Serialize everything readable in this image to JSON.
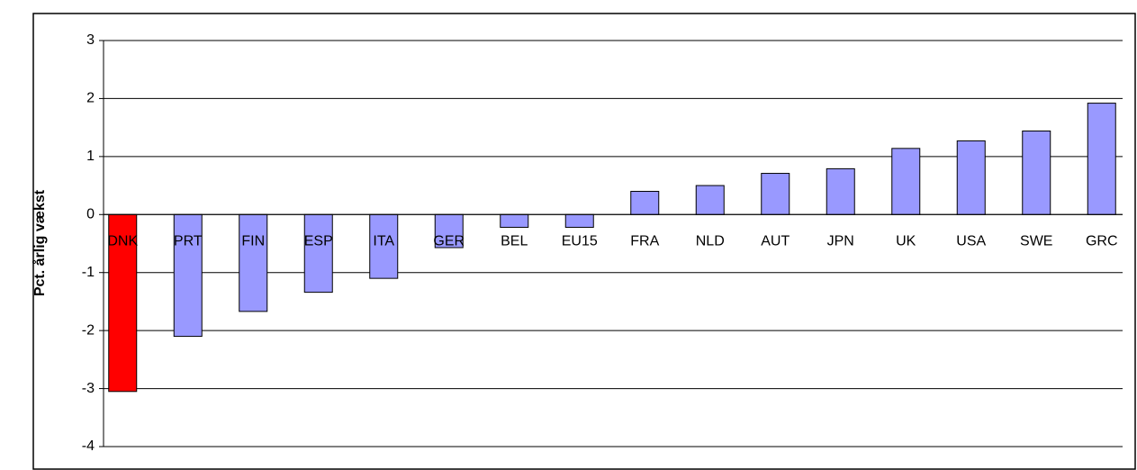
{
  "chart_data": {
    "type": "bar",
    "y_label": "Pct. årlig vækst",
    "categories": [
      "DNK",
      "PRT",
      "FIN",
      "ESP",
      "ITA",
      "GER",
      "BEL",
      "EU15",
      "FRA",
      "NLD",
      "AUT",
      "JPN",
      "UK",
      "USA",
      "SWE",
      "GRC"
    ],
    "values": [
      -3.05,
      -2.1,
      -1.67,
      -1.34,
      -1.1,
      -0.57,
      -0.22,
      -0.22,
      0.4,
      0.5,
      0.71,
      0.79,
      1.14,
      1.27,
      1.44,
      1.92
    ],
    "colors": [
      "#ff0000",
      "#9999ff",
      "#9999ff",
      "#9999ff",
      "#9999ff",
      "#9999ff",
      "#9999ff",
      "#9999ff",
      "#9999ff",
      "#9999ff",
      "#9999ff",
      "#9999ff",
      "#9999ff",
      "#9999ff",
      "#9999ff",
      "#9999ff"
    ],
    "ylim": [
      -4,
      3
    ],
    "yticks": [
      -4,
      -3,
      -2,
      -1,
      0,
      1,
      2,
      3
    ],
    "grid": true
  }
}
